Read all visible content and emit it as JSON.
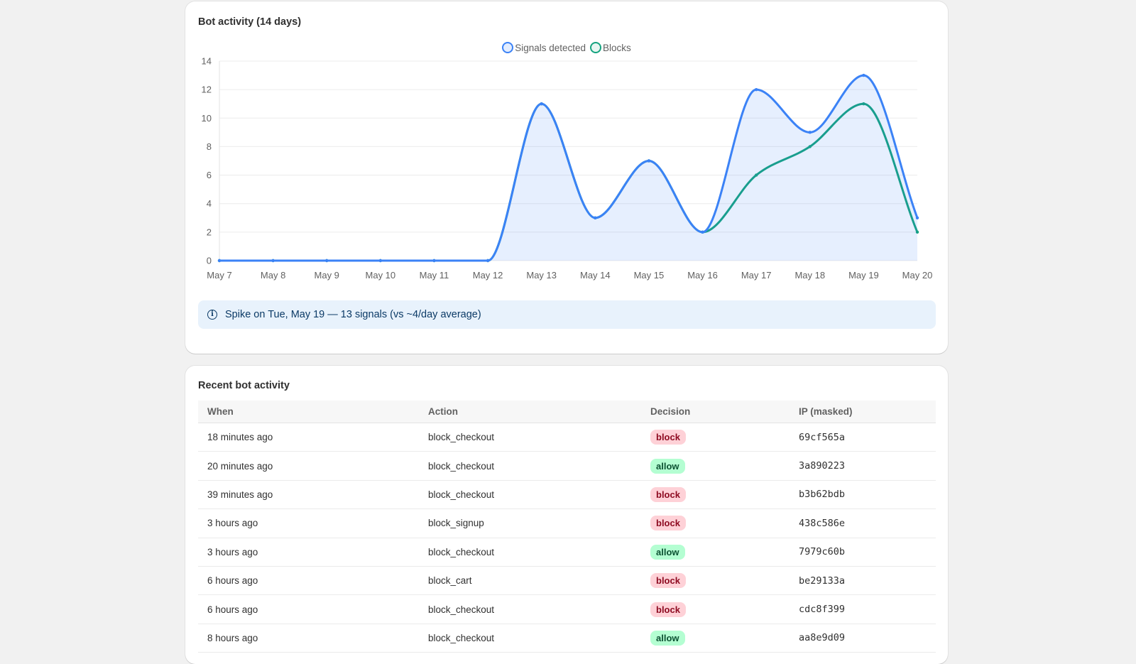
{
  "chart_card": {
    "title": "Bot activity (14 days)",
    "info_text": "Spike on Tue, May 19 — 13 signals (vs ~4/day average)"
  },
  "chart_data": {
    "type": "area",
    "title": "",
    "xlabel": "",
    "ylabel": "",
    "categories": [
      "May 7",
      "May 8",
      "May 9",
      "May 10",
      "May 11",
      "May 12",
      "May 13",
      "May 14",
      "May 15",
      "May 16",
      "May 17",
      "May 18",
      "May 19",
      "May 20"
    ],
    "ylim": [
      0,
      14
    ],
    "yticks": [
      0,
      2,
      4,
      6,
      8,
      10,
      12,
      14
    ],
    "grid": true,
    "legend_position": "top-center",
    "series": [
      {
        "name": "Signals detected",
        "values": [
          0,
          0,
          0,
          0,
          0,
          0,
          11,
          3,
          7,
          2,
          12,
          9,
          13,
          3
        ],
        "color": "#3b82f6",
        "fill": true
      },
      {
        "name": "Blocks",
        "values": [
          0,
          0,
          0,
          0,
          0,
          0,
          11,
          3,
          7,
          2,
          6,
          8,
          11,
          2
        ],
        "color": "#14a37f",
        "fill": false
      }
    ]
  },
  "table_card": {
    "title": "Recent bot activity",
    "columns": [
      "When",
      "Action",
      "Decision",
      "IP (masked)"
    ],
    "rows": [
      {
        "when": "18 minutes ago",
        "action": "block_checkout",
        "decision": "block",
        "ip": "69cf565a"
      },
      {
        "when": "20 minutes ago",
        "action": "block_checkout",
        "decision": "allow",
        "ip": "3a890223"
      },
      {
        "when": "39 minutes ago",
        "action": "block_checkout",
        "decision": "block",
        "ip": "b3b62bdb"
      },
      {
        "when": "3 hours ago",
        "action": "block_signup",
        "decision": "block",
        "ip": "438c586e"
      },
      {
        "when": "3 hours ago",
        "action": "block_checkout",
        "decision": "allow",
        "ip": "7979c60b"
      },
      {
        "when": "6 hours ago",
        "action": "block_cart",
        "decision": "block",
        "ip": "be29133a"
      },
      {
        "when": "6 hours ago",
        "action": "block_checkout",
        "decision": "block",
        "ip": "cdc8f399"
      },
      {
        "when": "8 hours ago",
        "action": "block_checkout",
        "decision": "allow",
        "ip": "aa8e9d09"
      }
    ]
  },
  "colors": {
    "signals": "#3b82f6",
    "blocks": "#14a37f",
    "block_badge_bg": "#fed1d7",
    "allow_badge_bg": "#b4fed2",
    "info_banner_bg": "#e8f2fc"
  }
}
